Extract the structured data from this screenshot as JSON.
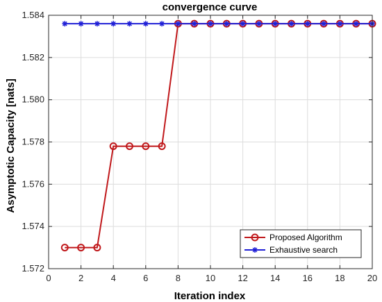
{
  "chart_data": {
    "type": "line",
    "title": "convergence curve",
    "xlabel": "Iteration index",
    "ylabel": "Asymptotic Capacity [nats]",
    "xlim": [
      0,
      20
    ],
    "ylim": [
      1.572,
      1.584
    ],
    "xticks": [
      0,
      2,
      4,
      6,
      8,
      10,
      12,
      14,
      16,
      18,
      20
    ],
    "yticks": [
      1.572,
      1.574,
      1.576,
      1.578,
      1.58,
      1.582,
      1.584
    ],
    "ytick_labels": [
      "1.572",
      "1.574",
      "1.576",
      "1.578",
      "1.580",
      "1.582",
      "1.584"
    ],
    "grid": true,
    "legend_position": "bottom-right",
    "series": [
      {
        "name": "Proposed Algorithm",
        "color": "#c0181b",
        "marker": "circle",
        "x": [
          1,
          2,
          3,
          4,
          5,
          6,
          7,
          8,
          9,
          10,
          11,
          12,
          13,
          14,
          15,
          16,
          17,
          18,
          19,
          20
        ],
        "y": [
          1.573,
          1.573,
          1.573,
          1.5778,
          1.5778,
          1.5778,
          1.5778,
          1.5836,
          1.5836,
          1.5836,
          1.5836,
          1.5836,
          1.5836,
          1.5836,
          1.5836,
          1.5836,
          1.5836,
          1.5836,
          1.5836,
          1.5836
        ]
      },
      {
        "name": "Exhaustive search",
        "color": "#1f1fd6",
        "marker": "asterisk",
        "x": [
          1,
          2,
          3,
          4,
          5,
          6,
          7,
          8,
          9,
          10,
          11,
          12,
          13,
          14,
          15,
          16,
          17,
          18,
          19,
          20
        ],
        "y": [
          1.5836,
          1.5836,
          1.5836,
          1.5836,
          1.5836,
          1.5836,
          1.5836,
          1.5836,
          1.5836,
          1.5836,
          1.5836,
          1.5836,
          1.5836,
          1.5836,
          1.5836,
          1.5836,
          1.5836,
          1.5836,
          1.5836,
          1.5836
        ]
      }
    ]
  }
}
